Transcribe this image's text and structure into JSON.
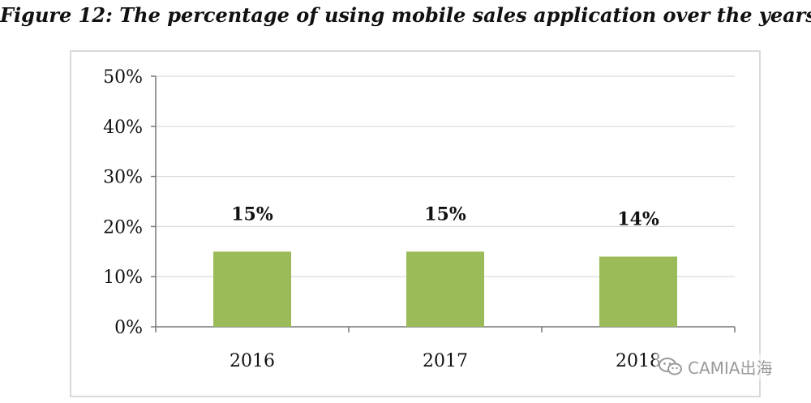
{
  "title": "Figure 12: The percentage of using mobile sales application over the years",
  "chart_data": {
    "type": "bar",
    "categories": [
      "2016",
      "2017",
      "2018"
    ],
    "values": [
      15,
      15,
      14
    ],
    "data_labels": [
      "15%",
      "15%",
      "14%"
    ],
    "ylim": [
      0,
      50
    ],
    "yticks": [
      0,
      10,
      20,
      30,
      40,
      50
    ],
    "ytick_labels": [
      "0%",
      "10%",
      "20%",
      "30%",
      "40%",
      "50%"
    ],
    "grid": true,
    "bar_color": "#9bbb59",
    "grid_color": "#d9d9d9",
    "legend": "none"
  },
  "watermark": {
    "text": "CAMIA出海",
    "icon": "wechat-icon"
  }
}
